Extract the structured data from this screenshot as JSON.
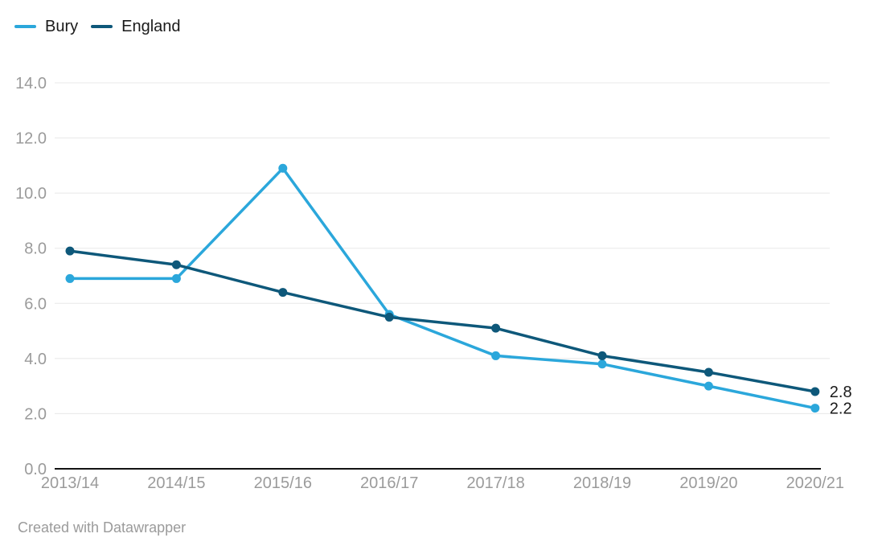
{
  "chart_data": {
    "type": "line",
    "categories": [
      "2013/14",
      "2014/15",
      "2015/16",
      "2016/17",
      "2017/18",
      "2018/19",
      "2019/20",
      "2020/21"
    ],
    "series": [
      {
        "name": "Bury",
        "color": "#2BA7DB",
        "values": [
          6.9,
          6.9,
          10.9,
          5.6,
          4.1,
          3.8,
          3.0,
          2.2
        ],
        "end_label": "2.2"
      },
      {
        "name": "England",
        "color": "#0E587A",
        "values": [
          7.9,
          7.4,
          6.4,
          5.5,
          5.1,
          4.1,
          3.5,
          2.8
        ],
        "end_label": "2.8"
      }
    ],
    "title": "",
    "xlabel": "",
    "ylabel": "",
    "ylim": [
      0,
      14
    ],
    "yticks": [
      {
        "value": 0,
        "label": "0.0"
      },
      {
        "value": 2,
        "label": "2.0"
      },
      {
        "value": 4,
        "label": "4.0"
      },
      {
        "value": 6,
        "label": "6.0"
      },
      {
        "value": 8,
        "label": "8.0"
      },
      {
        "value": 10,
        "label": "10.0"
      },
      {
        "value": 12,
        "label": "12.0"
      },
      {
        "value": 14,
        "label": "14.0"
      }
    ],
    "grid": true,
    "legend_position": "top-left"
  },
  "styles": {
    "grid_color": "#e8e8e8",
    "axis_color": "#131313",
    "tick_label_color": "#9b9b9b",
    "end_label_color": "#1a1a1a"
  },
  "footer": {
    "credit": "Created with Datawrapper"
  }
}
